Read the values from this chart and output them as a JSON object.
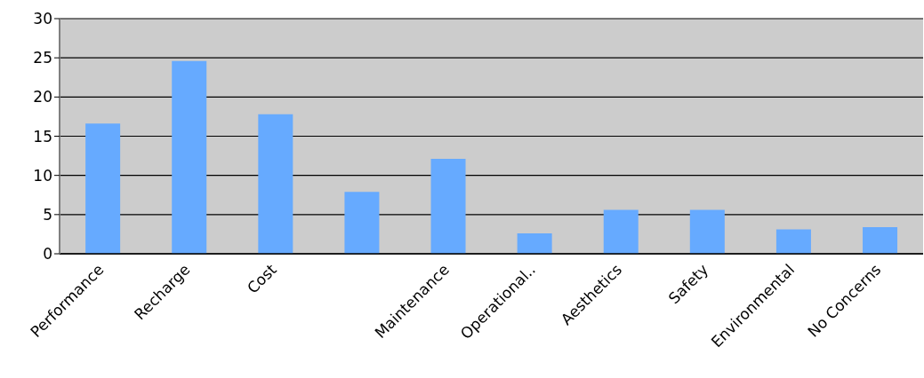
{
  "chart_data": {
    "type": "bar",
    "categories": [
      "Performance",
      "Recharge",
      "Cost",
      null,
      "Maintenance",
      "Operational..",
      "Aesthetics",
      "Safety",
      "Environmental",
      "No Concerns"
    ],
    "values": [
      16.6,
      24.6,
      17.8,
      7.9,
      12.1,
      2.6,
      5.6,
      5.6,
      3.1,
      3.4
    ],
    "color": "#66aaff",
    "ylim": [
      0,
      30
    ],
    "yticks": [
      0,
      5,
      10,
      15,
      20,
      25,
      30
    ],
    "grid": "y"
  }
}
